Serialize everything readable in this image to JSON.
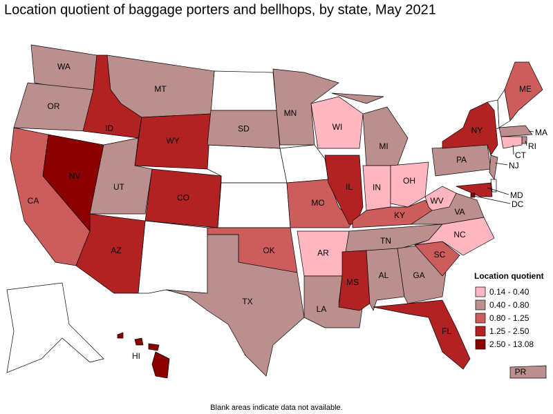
{
  "title": "Location quotient of baggage porters and bellhops, by state, May 2021",
  "legend": {
    "title": "Location quotient",
    "items": [
      {
        "label": "0.14 - 0.40",
        "color": "#ffb6c1"
      },
      {
        "label": "0.40 - 0.80",
        "color": "#bc8f8f"
      },
      {
        "label": "0.80 - 1.25",
        "color": "#cd5c5c"
      },
      {
        "label": "1.25 - 2.50",
        "color": "#b22222"
      },
      {
        "label": "2.50 - 13.08",
        "color": "#8b0000"
      }
    ]
  },
  "regions": [
    {
      "label": "WA",
      "color": "#bc8f8f"
    },
    {
      "label": "OR",
      "color": "#bc8f8f"
    },
    {
      "label": "CA",
      "color": "#cd5c5c"
    },
    {
      "label": "NV",
      "color": "#8b0000"
    },
    {
      "label": "ID",
      "color": "#b22222"
    },
    {
      "label": "MT",
      "color": "#bc8f8f"
    },
    {
      "label": "WY",
      "color": "#b22222"
    },
    {
      "label": "UT",
      "color": "#bc8f8f"
    },
    {
      "label": "CO",
      "color": "#b22222"
    },
    {
      "label": "AZ",
      "color": "#b22222"
    },
    {
      "label": "SD",
      "color": "#bc8f8f"
    },
    {
      "label": "OK",
      "color": "#cd5c5c"
    },
    {
      "label": "TX",
      "color": "#bc8f8f"
    },
    {
      "label": "MN",
      "color": "#bc8f8f"
    },
    {
      "label": "MO",
      "color": "#cd5c5c"
    },
    {
      "label": "AR",
      "color": "#ffb6c1"
    },
    {
      "label": "LA",
      "color": "#bc8f8f"
    },
    {
      "label": "WI",
      "color": "#ffb6c1"
    },
    {
      "label": "MI",
      "color": "#bc8f8f"
    },
    {
      "label": "IL",
      "color": "#b22222"
    },
    {
      "label": "IN",
      "color": "#ffb6c1"
    },
    {
      "label": "OH",
      "color": "#ffb6c1"
    },
    {
      "label": "KY",
      "color": "#cd5c5c"
    },
    {
      "label": "TN",
      "color": "#bc8f8f"
    },
    {
      "label": "MS",
      "color": "#b22222"
    },
    {
      "label": "AL",
      "color": "#bc8f8f"
    },
    {
      "label": "GA",
      "color": "#bc8f8f"
    },
    {
      "label": "FL",
      "color": "#b22222"
    },
    {
      "label": "SC",
      "color": "#cd5c5c"
    },
    {
      "label": "NC",
      "color": "#ffb6c1"
    },
    {
      "label": "VA",
      "color": "#bc8f8f"
    },
    {
      "label": "WV",
      "color": "#ffb6c1"
    },
    {
      "label": "PA",
      "color": "#bc8f8f"
    },
    {
      "label": "NY",
      "color": "#b22222"
    },
    {
      "label": "ME",
      "color": "#cd5c5c"
    },
    {
      "label": "MA",
      "color": "#bc8f8f"
    },
    {
      "label": "RI",
      "color": "#bc8f8f"
    },
    {
      "label": "CT",
      "color": "#ffb6c1"
    },
    {
      "label": "NJ",
      "color": "#bc8f8f"
    },
    {
      "label": "MD",
      "color": "#b22222"
    },
    {
      "label": "DC",
      "color": "#8b0000"
    },
    {
      "label": "HI",
      "color": "#8b0000"
    },
    {
      "label": "PR",
      "color": "#bc8f8f"
    }
  ],
  "footnote": "Blank areas indicate data not available."
}
